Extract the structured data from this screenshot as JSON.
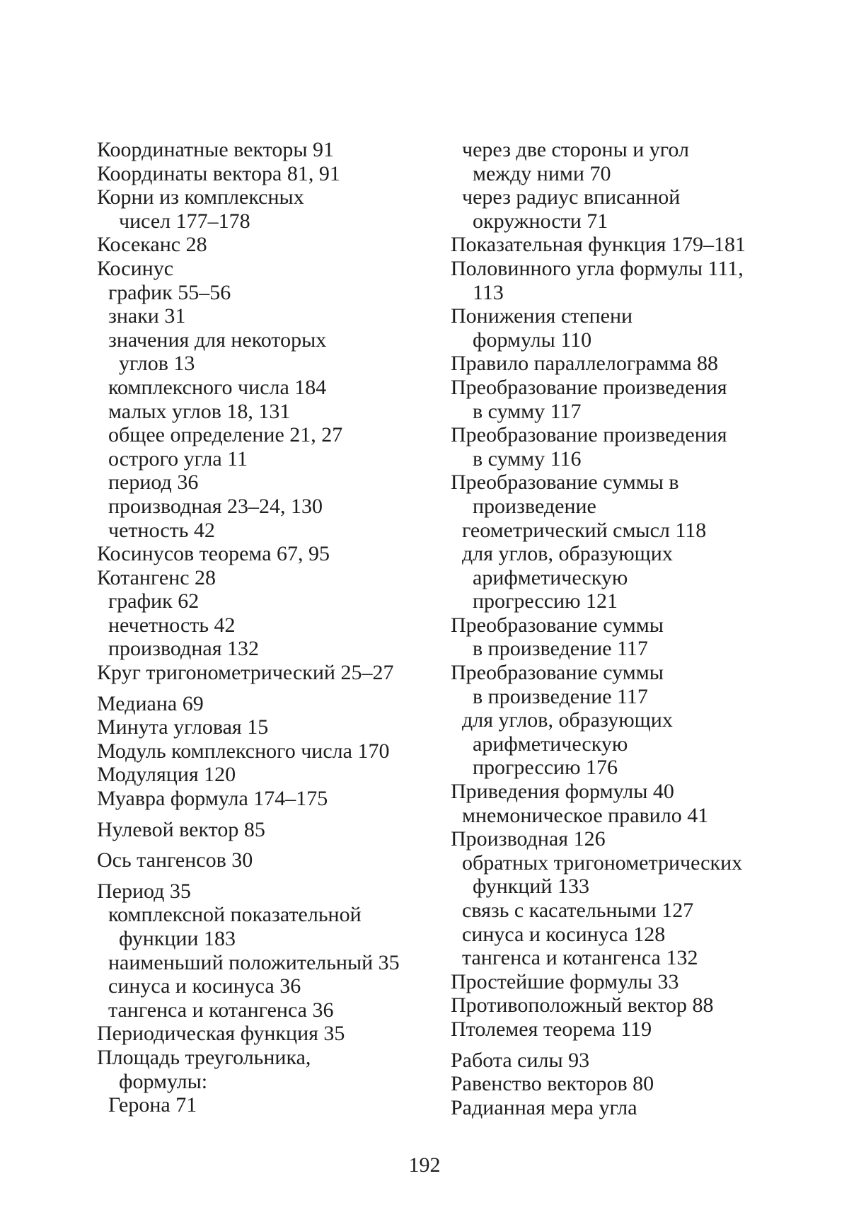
{
  "index": {
    "columns": [
      {
        "side": "left",
        "lines": [
          {
            "text": "Координатные векторы 91",
            "indent": 0
          },
          {
            "text": "Координаты вектора 81, 91",
            "indent": 0
          },
          {
            "text": "Корни из комплексных",
            "indent": 0
          },
          {
            "text": "чисел 177–178",
            "indent": 2
          },
          {
            "text": "Косеканс 28",
            "indent": 0
          },
          {
            "text": "Косинус",
            "indent": 0
          },
          {
            "text": "график 55–56",
            "indent": 1
          },
          {
            "text": "знаки 31",
            "indent": 1
          },
          {
            "text": "значения для некоторых",
            "indent": 1
          },
          {
            "text": "углов 13",
            "indent": 2
          },
          {
            "text": "комплексного числа 184",
            "indent": 1
          },
          {
            "text": "малых углов 18, 131",
            "indent": 1
          },
          {
            "text": "общее определение 21, 27",
            "indent": 1
          },
          {
            "text": "острого угла 11",
            "indent": 1
          },
          {
            "text": "период 36",
            "indent": 1
          },
          {
            "text": "производная 23–24, 130",
            "indent": 1
          },
          {
            "text": "четность 42",
            "indent": 1
          },
          {
            "text": "Косинусов теорема 67, 95",
            "indent": 0
          },
          {
            "text": "Котангенс 28",
            "indent": 0
          },
          {
            "text": "график 62",
            "indent": 1
          },
          {
            "text": "нечетность 42",
            "indent": 1
          },
          {
            "text": "производная 132",
            "indent": 1
          },
          {
            "text": "Круг тригонометрический 25–27",
            "indent": 0
          },
          {
            "text": "Медиана 69",
            "indent": 0,
            "gap": true
          },
          {
            "text": "Минута угловая 15",
            "indent": 0
          },
          {
            "text": "Модуль комплексного числа 170",
            "indent": 0
          },
          {
            "text": "Модуляция 120",
            "indent": 0
          },
          {
            "text": "Муавра формула 174–175",
            "indent": 0
          },
          {
            "text": "Нулевой вектор 85",
            "indent": 0,
            "gap": true
          },
          {
            "text": "Ось тангенсов 30",
            "indent": 0,
            "gap": true
          },
          {
            "text": "Период 35",
            "indent": 0,
            "gap": true
          },
          {
            "text": "комплексной показательной",
            "indent": 1
          },
          {
            "text": "функции 183",
            "indent": 2
          },
          {
            "text": "наименьший положительный 35",
            "indent": 1
          },
          {
            "text": "синуса и косинуса 36",
            "indent": 1
          },
          {
            "text": "тангенса и котангенса 36",
            "indent": 1
          },
          {
            "text": "Периодическая функция 35",
            "indent": 0
          },
          {
            "text": "Площадь треугольника,",
            "indent": 0
          },
          {
            "text": "формулы:",
            "indent": 2
          },
          {
            "text": "Герона 71",
            "indent": 1
          }
        ]
      },
      {
        "side": "right",
        "lines": [
          {
            "text": "через две стороны и угол",
            "indent": 1
          },
          {
            "text": "между ними 70",
            "indent": 2
          },
          {
            "text": "через радиус вписанной",
            "indent": 1
          },
          {
            "text": "окружности 71",
            "indent": 2
          },
          {
            "text": "Показательная функция 179–181",
            "indent": 0
          },
          {
            "text": "Половинного угла формулы 111,",
            "indent": 0
          },
          {
            "text": "113",
            "indent": 2
          },
          {
            "text": "Понижения степени",
            "indent": 0
          },
          {
            "text": "формулы 110",
            "indent": 2
          },
          {
            "text": "Правило параллелограмма 88",
            "indent": 0
          },
          {
            "text": "Преобразование произведения",
            "indent": 0
          },
          {
            "text": "в сумму 117",
            "indent": 2
          },
          {
            "text": "Преобразование произведения",
            "indent": 0
          },
          {
            "text": "в сумму 116",
            "indent": 2
          },
          {
            "text": "Преобразование суммы в",
            "indent": 0
          },
          {
            "text": "произведение",
            "indent": 2
          },
          {
            "text": "геометрический смысл 118",
            "indent": 1
          },
          {
            "text": "для углов, образующих",
            "indent": 1
          },
          {
            "text": "арифметическую",
            "indent": 2
          },
          {
            "text": "прогрессию 121",
            "indent": 2
          },
          {
            "text": "Преобразование суммы",
            "indent": 0
          },
          {
            "text": "в произведение 117",
            "indent": 2
          },
          {
            "text": "Преобразование суммы",
            "indent": 0
          },
          {
            "text": "в произведение 117",
            "indent": 2
          },
          {
            "text": "для углов, образующих",
            "indent": 1
          },
          {
            "text": "арифметическую",
            "indent": 2
          },
          {
            "text": "прогрессию 176",
            "indent": 2
          },
          {
            "text": "Приведения формулы 40",
            "indent": 0
          },
          {
            "text": "мнемоническое правило 41",
            "indent": 1
          },
          {
            "text": "Производная 126",
            "indent": 0
          },
          {
            "text": "обратных тригонометрических",
            "indent": 1
          },
          {
            "text": "функций 133",
            "indent": 2
          },
          {
            "text": "связь с касательными 127",
            "indent": 1
          },
          {
            "text": "синуса и косинуса 128",
            "indent": 1
          },
          {
            "text": "тангенса и котангенса 132",
            "indent": 1
          },
          {
            "text": "Простейшие формулы 33",
            "indent": 0
          },
          {
            "text": "Противоположный вектор 88",
            "indent": 0
          },
          {
            "text": "Птолемея теорема 119",
            "indent": 0
          },
          {
            "text": "Работа силы 93",
            "indent": 0,
            "gap": true
          },
          {
            "text": "Равенство векторов 80",
            "indent": 0
          },
          {
            "text": "Радианная мера угла",
            "indent": 0
          }
        ]
      }
    ]
  },
  "footer": {
    "page_number": "192"
  }
}
